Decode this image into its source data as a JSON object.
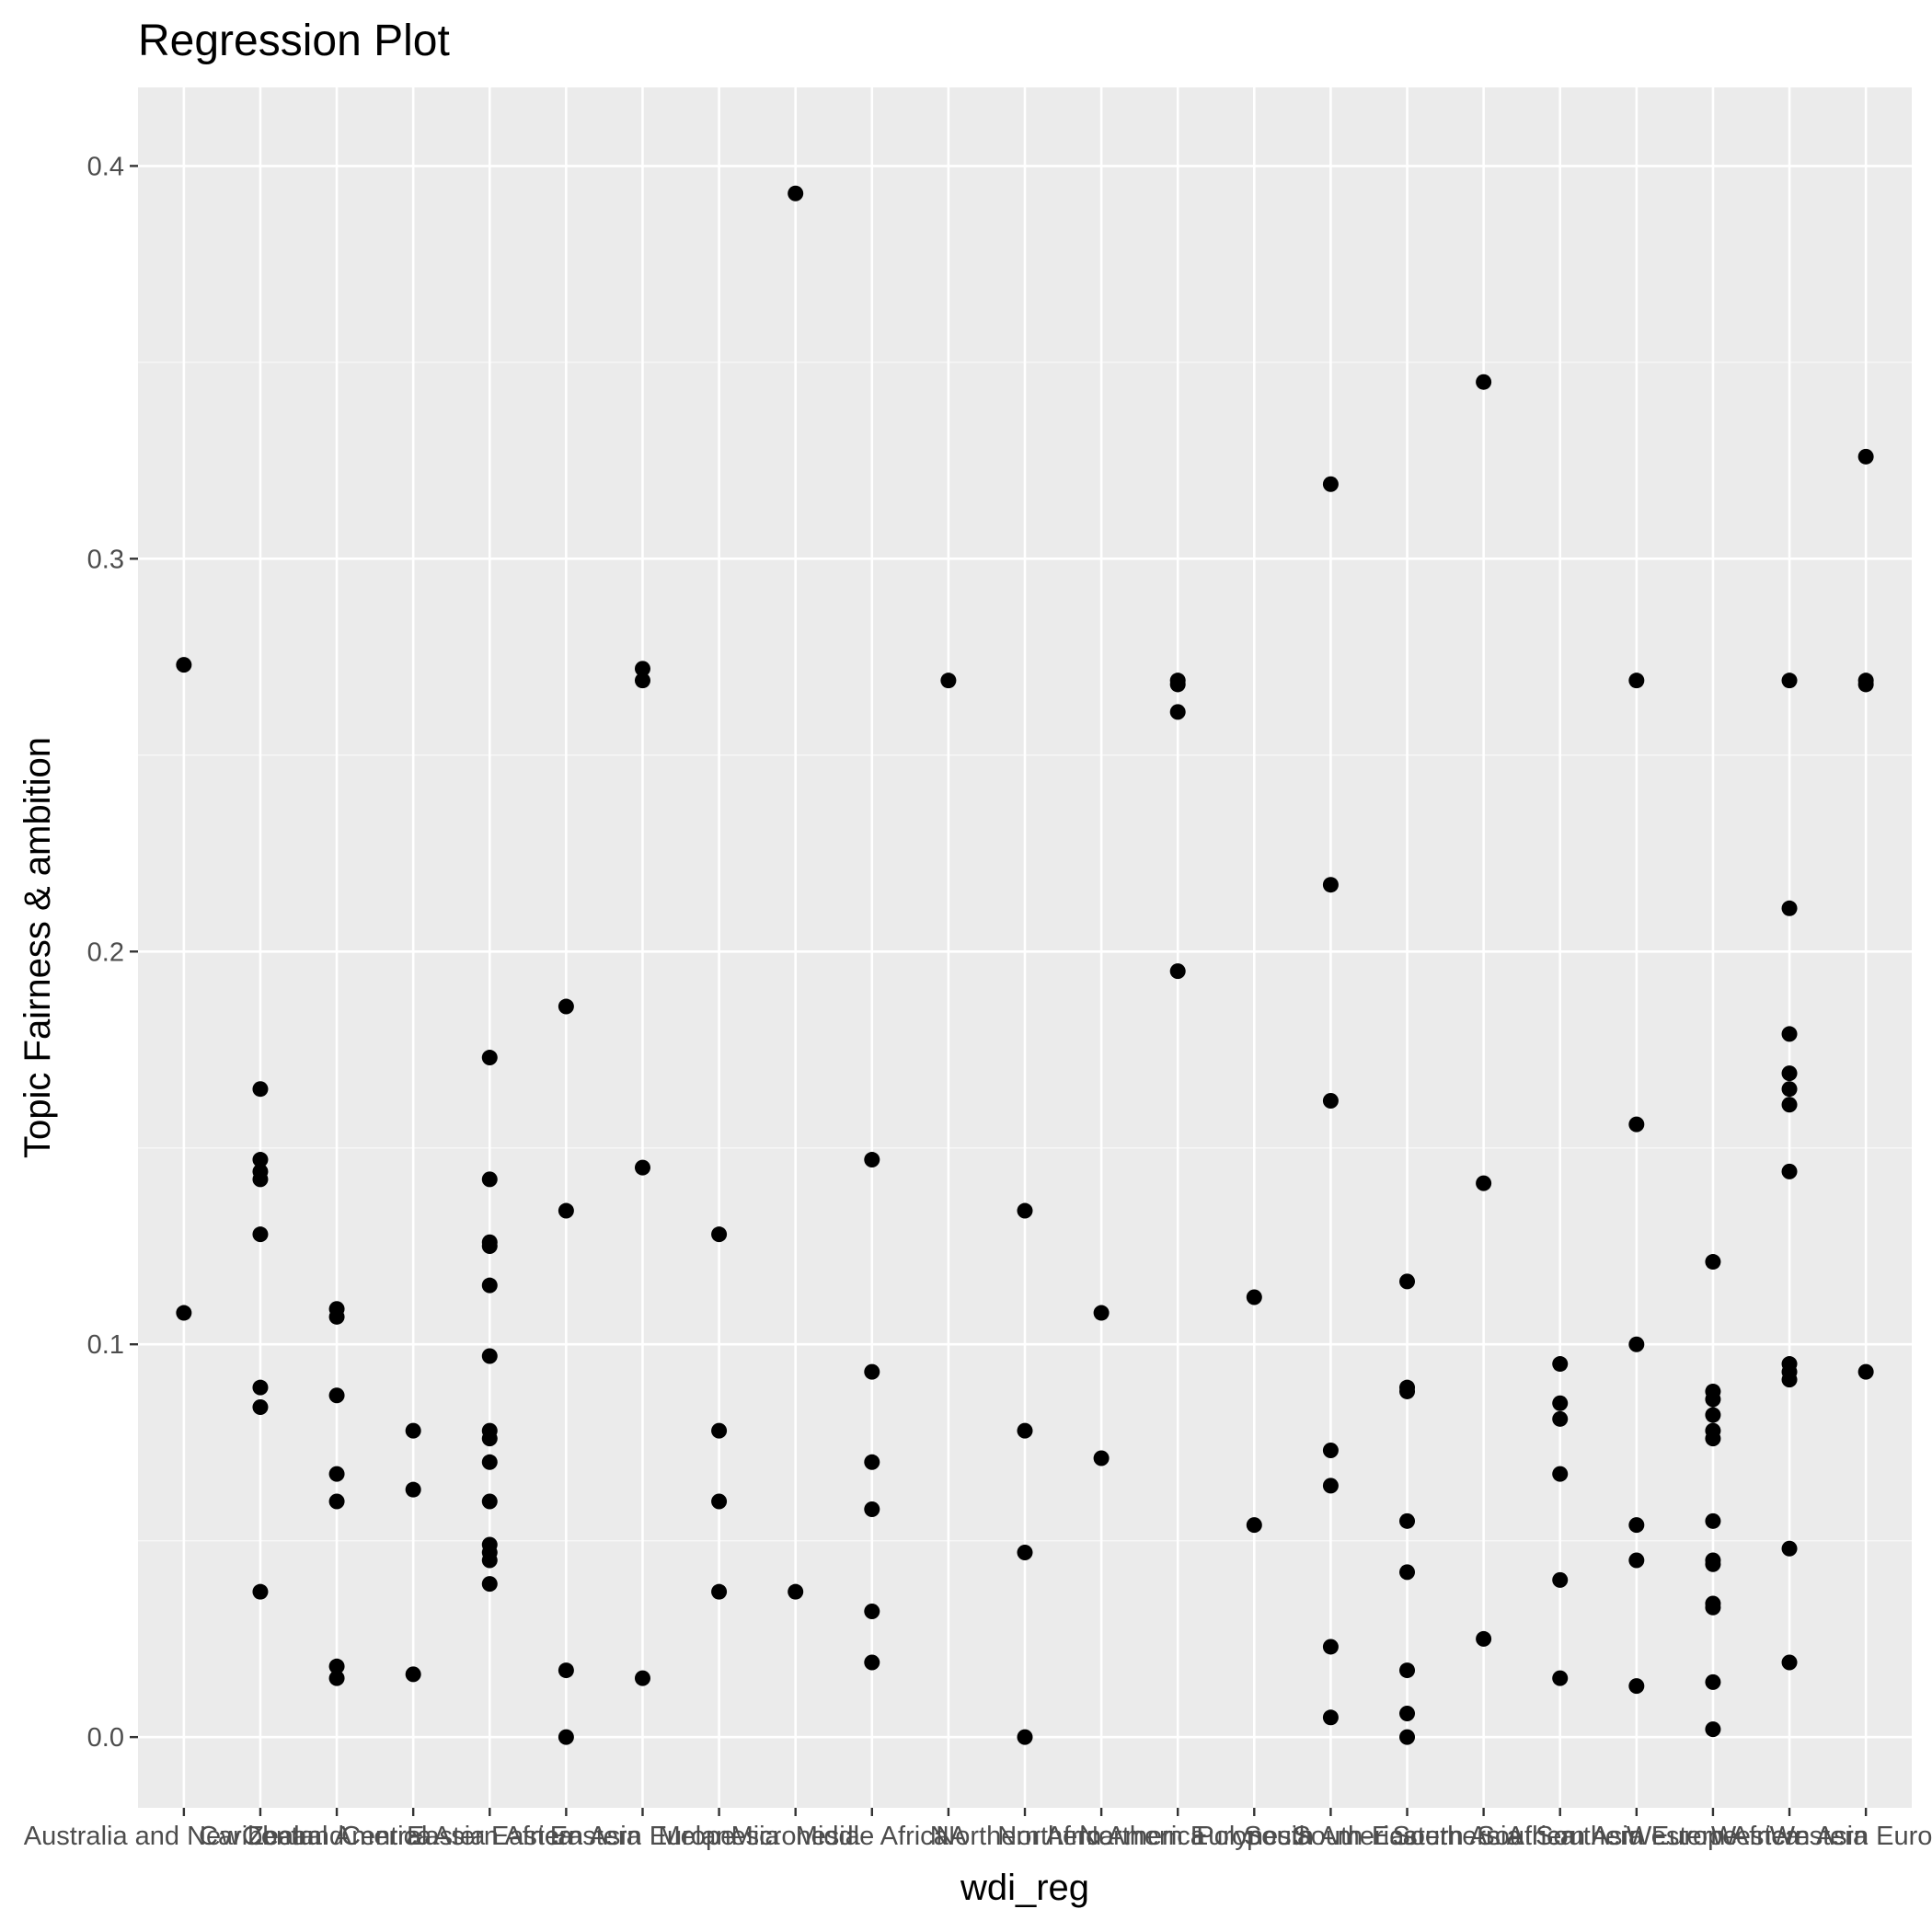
{
  "chart_data": {
    "type": "scatter",
    "title": "Regression Plot",
    "xlabel": "wdi_reg",
    "ylabel": "Topic Fairness & ambition",
    "categories": [
      "Australia and New Zealand",
      "Caribbean",
      "Central America",
      "Central Asia",
      "Eastern Africa",
      "Eastern Asia",
      "Eastern Europe",
      "Melanesia",
      "Micronesia",
      "Middle Africa",
      "NA",
      "Northern Africa",
      "Northern America",
      "Northern Europe",
      "Polynesia",
      "South America",
      "South-Eastern Asia",
      "Southern Africa",
      "Southern Asia",
      "Southern Europe",
      "Western Africa",
      "Western Asia",
      "Western Europe"
    ],
    "ylim": [
      -0.018,
      0.42
    ],
    "yticks": [
      0.0,
      0.1,
      0.2,
      0.3,
      0.4
    ],
    "grid": true,
    "points": [
      {
        "x": "Australia and New Zealand",
        "y": 0.273
      },
      {
        "x": "Australia and New Zealand",
        "y": 0.108
      },
      {
        "x": "Caribbean",
        "y": 0.165
      },
      {
        "x": "Caribbean",
        "y": 0.147
      },
      {
        "x": "Caribbean",
        "y": 0.144
      },
      {
        "x": "Caribbean",
        "y": 0.142
      },
      {
        "x": "Caribbean",
        "y": 0.128
      },
      {
        "x": "Caribbean",
        "y": 0.089
      },
      {
        "x": "Caribbean",
        "y": 0.084
      },
      {
        "x": "Caribbean",
        "y": 0.037
      },
      {
        "x": "Central America",
        "y": 0.109
      },
      {
        "x": "Central America",
        "y": 0.107
      },
      {
        "x": "Central America",
        "y": 0.087
      },
      {
        "x": "Central America",
        "y": 0.067
      },
      {
        "x": "Central America",
        "y": 0.06
      },
      {
        "x": "Central America",
        "y": 0.018
      },
      {
        "x": "Central America",
        "y": 0.015
      },
      {
        "x": "Central Asia",
        "y": 0.078
      },
      {
        "x": "Central Asia",
        "y": 0.063
      },
      {
        "x": "Central Asia",
        "y": 0.016
      },
      {
        "x": "Eastern Africa",
        "y": 0.173
      },
      {
        "x": "Eastern Africa",
        "y": 0.142
      },
      {
        "x": "Eastern Africa",
        "y": 0.126
      },
      {
        "x": "Eastern Africa",
        "y": 0.125
      },
      {
        "x": "Eastern Africa",
        "y": 0.115
      },
      {
        "x": "Eastern Africa",
        "y": 0.097
      },
      {
        "x": "Eastern Africa",
        "y": 0.078
      },
      {
        "x": "Eastern Africa",
        "y": 0.076
      },
      {
        "x": "Eastern Africa",
        "y": 0.07
      },
      {
        "x": "Eastern Africa",
        "y": 0.06
      },
      {
        "x": "Eastern Africa",
        "y": 0.049
      },
      {
        "x": "Eastern Africa",
        "y": 0.047
      },
      {
        "x": "Eastern Africa",
        "y": 0.045
      },
      {
        "x": "Eastern Africa",
        "y": 0.039
      },
      {
        "x": "Eastern Asia",
        "y": 0.186
      },
      {
        "x": "Eastern Asia",
        "y": 0.134
      },
      {
        "x": "Eastern Asia",
        "y": 0.017
      },
      {
        "x": "Eastern Asia",
        "y": 0.0
      },
      {
        "x": "Eastern Europe",
        "y": 0.272
      },
      {
        "x": "Eastern Europe",
        "y": 0.269
      },
      {
        "x": "Eastern Europe",
        "y": 0.145
      },
      {
        "x": "Eastern Europe",
        "y": 0.015
      },
      {
        "x": "Melanesia",
        "y": 0.128
      },
      {
        "x": "Melanesia",
        "y": 0.078
      },
      {
        "x": "Melanesia",
        "y": 0.06
      },
      {
        "x": "Melanesia",
        "y": 0.037
      },
      {
        "x": "Micronesia",
        "y": 0.393
      },
      {
        "x": "Micronesia",
        "y": 0.037
      },
      {
        "x": "Middle Africa",
        "y": 0.147
      },
      {
        "x": "Middle Africa",
        "y": 0.093
      },
      {
        "x": "Middle Africa",
        "y": 0.07
      },
      {
        "x": "Middle Africa",
        "y": 0.058
      },
      {
        "x": "Middle Africa",
        "y": 0.032
      },
      {
        "x": "Middle Africa",
        "y": 0.019
      },
      {
        "x": "NA",
        "y": 0.269
      },
      {
        "x": "Northern Africa",
        "y": 0.134
      },
      {
        "x": "Northern Africa",
        "y": 0.078
      },
      {
        "x": "Northern Africa",
        "y": 0.047
      },
      {
        "x": "Northern Africa",
        "y": 0.0
      },
      {
        "x": "Northern America",
        "y": 0.108
      },
      {
        "x": "Northern America",
        "y": 0.071
      },
      {
        "x": "Northern Europe",
        "y": 0.269
      },
      {
        "x": "Northern Europe",
        "y": 0.268
      },
      {
        "x": "Northern Europe",
        "y": 0.261
      },
      {
        "x": "Northern Europe",
        "y": 0.195
      },
      {
        "x": "Polynesia",
        "y": 0.112
      },
      {
        "x": "Polynesia",
        "y": 0.054
      },
      {
        "x": "South America",
        "y": 0.319
      },
      {
        "x": "South America",
        "y": 0.217
      },
      {
        "x": "South America",
        "y": 0.162
      },
      {
        "x": "South America",
        "y": 0.073
      },
      {
        "x": "South America",
        "y": 0.064
      },
      {
        "x": "South America",
        "y": 0.023
      },
      {
        "x": "South America",
        "y": 0.005
      },
      {
        "x": "South-Eastern Asia",
        "y": 0.116
      },
      {
        "x": "South-Eastern Asia",
        "y": 0.089
      },
      {
        "x": "South-Eastern Asia",
        "y": 0.088
      },
      {
        "x": "South-Eastern Asia",
        "y": 0.055
      },
      {
        "x": "South-Eastern Asia",
        "y": 0.042
      },
      {
        "x": "South-Eastern Asia",
        "y": 0.017
      },
      {
        "x": "South-Eastern Asia",
        "y": 0.006
      },
      {
        "x": "South-Eastern Asia",
        "y": 0.0
      },
      {
        "x": "Southern Africa",
        "y": 0.345
      },
      {
        "x": "Southern Africa",
        "y": 0.141
      },
      {
        "x": "Southern Africa",
        "y": 0.025
      },
      {
        "x": "Southern Asia",
        "y": 0.095
      },
      {
        "x": "Southern Asia",
        "y": 0.085
      },
      {
        "x": "Southern Asia",
        "y": 0.081
      },
      {
        "x": "Southern Asia",
        "y": 0.067
      },
      {
        "x": "Southern Asia",
        "y": 0.04
      },
      {
        "x": "Southern Asia",
        "y": 0.015
      },
      {
        "x": "Southern Europe",
        "y": 0.269
      },
      {
        "x": "Southern Europe",
        "y": 0.156
      },
      {
        "x": "Southern Europe",
        "y": 0.1
      },
      {
        "x": "Southern Europe",
        "y": 0.054
      },
      {
        "x": "Southern Europe",
        "y": 0.045
      },
      {
        "x": "Southern Europe",
        "y": 0.013
      },
      {
        "x": "Western Africa",
        "y": 0.121
      },
      {
        "x": "Western Africa",
        "y": 0.088
      },
      {
        "x": "Western Africa",
        "y": 0.086
      },
      {
        "x": "Western Africa",
        "y": 0.082
      },
      {
        "x": "Western Africa",
        "y": 0.078
      },
      {
        "x": "Western Africa",
        "y": 0.076
      },
      {
        "x": "Western Africa",
        "y": 0.055
      },
      {
        "x": "Western Africa",
        "y": 0.045
      },
      {
        "x": "Western Africa",
        "y": 0.044
      },
      {
        "x": "Western Africa",
        "y": 0.034
      },
      {
        "x": "Western Africa",
        "y": 0.033
      },
      {
        "x": "Western Africa",
        "y": 0.014
      },
      {
        "x": "Western Africa",
        "y": 0.002
      },
      {
        "x": "Western Asia",
        "y": 0.269
      },
      {
        "x": "Western Asia",
        "y": 0.211
      },
      {
        "x": "Western Asia",
        "y": 0.179
      },
      {
        "x": "Western Asia",
        "y": 0.169
      },
      {
        "x": "Western Asia",
        "y": 0.165
      },
      {
        "x": "Western Asia",
        "y": 0.161
      },
      {
        "x": "Western Asia",
        "y": 0.144
      },
      {
        "x": "Western Asia",
        "y": 0.095
      },
      {
        "x": "Western Asia",
        "y": 0.093
      },
      {
        "x": "Western Asia",
        "y": 0.091
      },
      {
        "x": "Western Asia",
        "y": 0.048
      },
      {
        "x": "Western Asia",
        "y": 0.019
      },
      {
        "x": "Western Europe",
        "y": 0.326
      },
      {
        "x": "Western Europe",
        "y": 0.269
      },
      {
        "x": "Western Europe",
        "y": 0.268
      },
      {
        "x": "Western Europe",
        "y": 0.093
      }
    ]
  }
}
